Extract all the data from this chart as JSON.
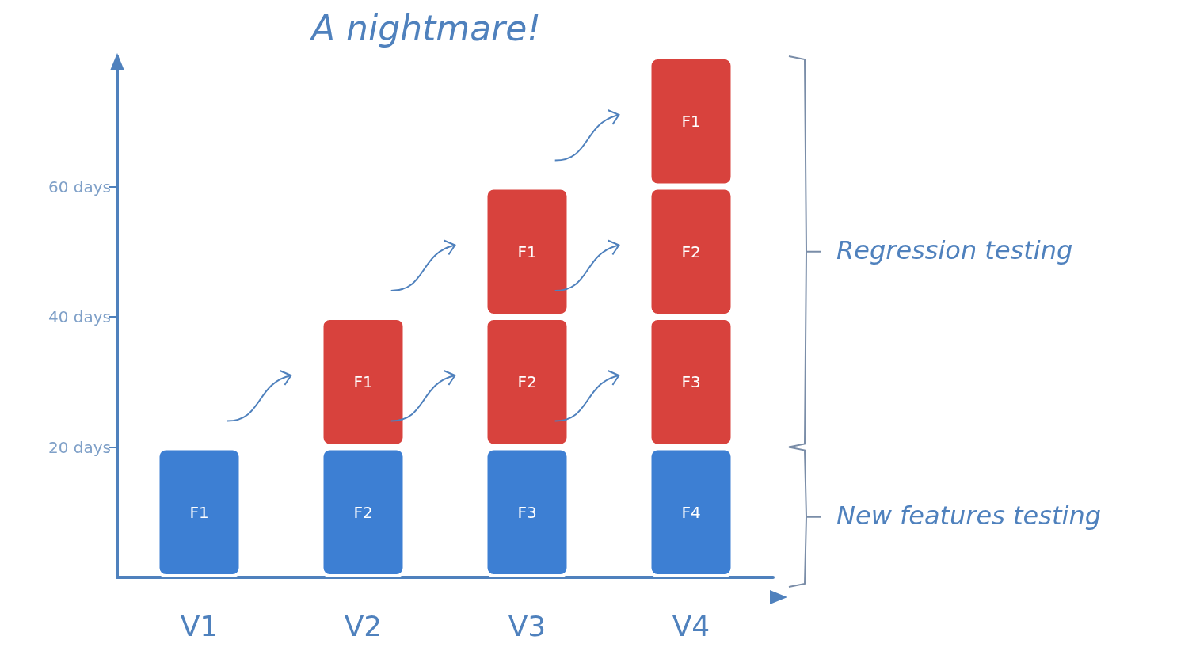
{
  "chart_data": {
    "type": "bar",
    "stacked": true,
    "title": "A nightmare!",
    "categories": [
      "V1",
      "V2",
      "V3",
      "V4"
    ],
    "series": [
      {
        "color": "#3d7fd3",
        "values": [
          20,
          20,
          20,
          20
        ],
        "value_labels": [
          "F1",
          "F2",
          "F3",
          "F4"
        ]
      },
      {
        "color": "#d8423d",
        "values": [
          null,
          20,
          20,
          20
        ],
        "value_labels": [
          null,
          "F1",
          "F2",
          "F3"
        ]
      },
      {
        "color": "#d8423d",
        "values": [
          null,
          null,
          20,
          20
        ],
        "value_labels": [
          null,
          null,
          "F1",
          "F2"
        ]
      },
      {
        "color": "#d8423d",
        "values": [
          null,
          null,
          null,
          20
        ],
        "value_labels": [
          null,
          null,
          null,
          "F1"
        ]
      }
    ],
    "ylim": [
      0,
      80
    ],
    "yticks": [
      {
        "value": 20,
        "label": "20 days"
      },
      {
        "value": 40,
        "label": "40 days"
      },
      {
        "value": 60,
        "label": "60 days"
      }
    ],
    "annotations": [
      "New features testing",
      "Regression testing"
    ],
    "grid": false
  }
}
